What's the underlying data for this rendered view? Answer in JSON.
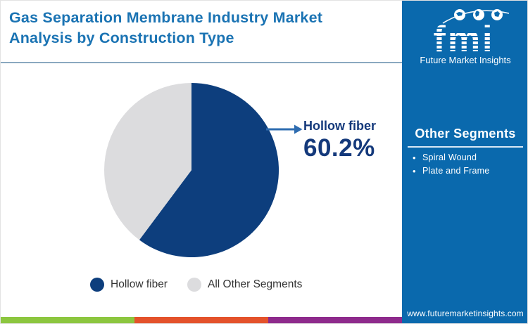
{
  "header": {
    "title": "Gas Separation Membrane Industry Market Analysis by Construction Type"
  },
  "logo": {
    "brand": "fmi",
    "tagline": "Future Market Insights"
  },
  "sidebar": {
    "heading": "Other Segments",
    "items": [
      "Spiral Wound",
      "Plate and Frame"
    ],
    "website": "www.futuremarketinsights.com"
  },
  "chart_data": {
    "type": "pie",
    "title": "Gas Separation Membrane Industry Market Analysis by Construction Type",
    "categories": [
      "Hollow fiber",
      "All Other Segments"
    ],
    "values": [
      60.2,
      39.8
    ],
    "colors": [
      "#0d3e7d",
      "#dcdcde"
    ],
    "start_angle_deg": -90,
    "direction": "clockwise",
    "legend_position": "bottom",
    "callout": {
      "label": "Hollow fiber",
      "value": "60.2%"
    }
  },
  "colors": {
    "title_blue": "#1a73b3",
    "sidebar_blue": "#0a69ad",
    "pie_navy": "#0d3e7d",
    "pie_gray": "#dcdcde",
    "arrow_blue": "#2e6cb0",
    "divider": "#8aa9c0"
  },
  "footer": {
    "stripe_colors": [
      "#8cc63f",
      "#e4522b",
      "#8e2a8c"
    ]
  }
}
